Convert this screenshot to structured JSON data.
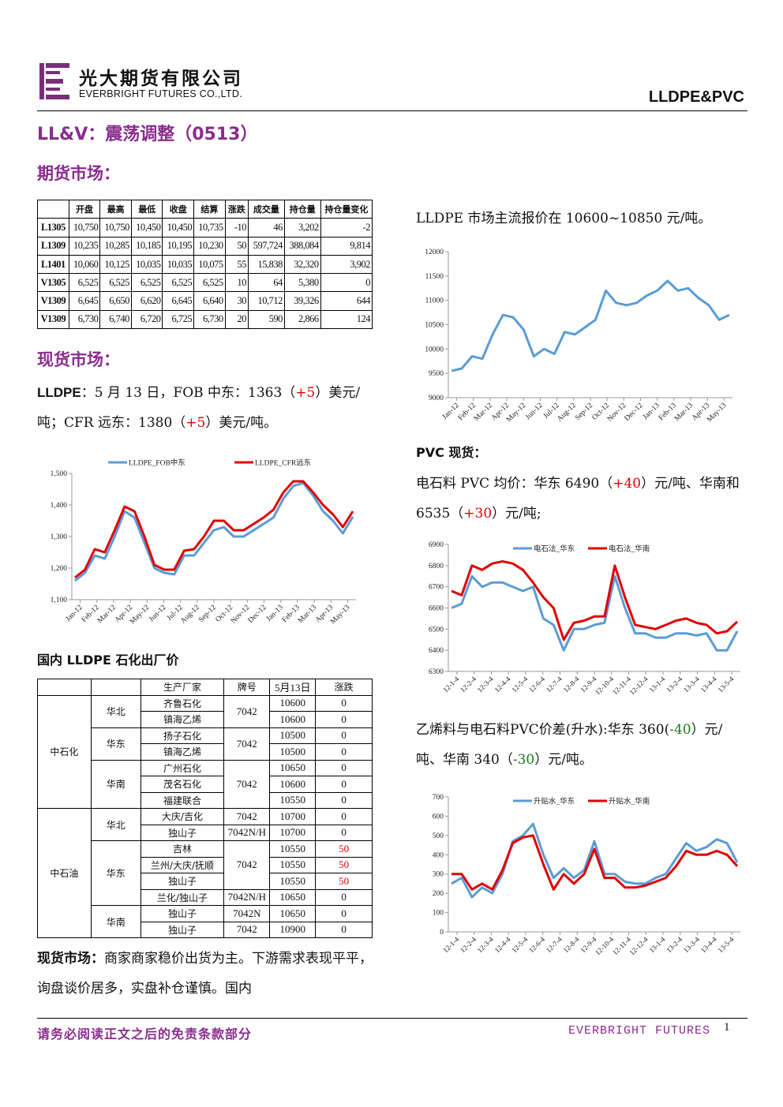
{
  "header": {
    "company_cn": "光大期货有限公司",
    "company_en": "EVERBRIGHT FUTURES CO.,LTD.",
    "report_type": "LLDPE&PVC",
    "logo_color": "#7a2e78"
  },
  "title": "LL&V：震荡调整（0513）",
  "futures": {
    "heading": "期货市场：",
    "columns": [
      "",
      "开盘",
      "最高",
      "最低",
      "收盘",
      "结算",
      "涨跌",
      "成交量",
      "持仓量",
      "持仓量变化"
    ],
    "rows": [
      [
        "L1305",
        "10,750",
        "10,750",
        "10,450",
        "10,450",
        "10,735",
        "-10",
        "46",
        "3,202",
        "-2"
      ],
      [
        "L1309",
        "10,235",
        "10,285",
        "10,185",
        "10,195",
        "10,230",
        "50",
        "597,724",
        "388,084",
        "9,814"
      ],
      [
        "L1401",
        "10,060",
        "10,125",
        "10,035",
        "10,035",
        "10,075",
        "55",
        "15,838",
        "32,320",
        "3,902"
      ],
      [
        "V1305",
        "6,525",
        "6,525",
        "6,525",
        "6,525",
        "6,525",
        "10",
        "64",
        "5,380",
        "0"
      ],
      [
        "V1309",
        "6,645",
        "6,650",
        "6,620",
        "6,645",
        "6,640",
        "30",
        "10,712",
        "39,326",
        "644"
      ],
      [
        "V1309",
        "6,730",
        "6,740",
        "6,720",
        "6,725",
        "6,730",
        "20",
        "590",
        "2,866",
        "124"
      ]
    ]
  },
  "spot": {
    "heading": "现货市场：",
    "lldpe_label": "LLDPE",
    "lldpe_text_1": "：5 月 13 日，FOB 中东：1363（",
    "lldpe_fob_change": "+5",
    "lldpe_text_2": "）美元/吨；CFR 远东：1380（",
    "lldpe_cfr_change": "+5",
    "lldpe_text_3": "）美元/吨。",
    "lldpe_quote": "LLDPE 市场主流报价在 10600~10850 元/吨。",
    "pvc_heading": "PVC 现货：",
    "pvc_text_1": "电石料 PVC 均价：华东 6490（",
    "pvc_east_change": "+40",
    "pvc_text_2": "）元/吨、华南和 6535（",
    "pvc_south_change": "+30",
    "pvc_text_3": "）元/吨;",
    "spread_text_1": "乙烯料与电石料PVC价差(升水):华东 360(",
    "spread_east_change": "-40",
    "spread_text_2": "）元/吨、华南 340（",
    "spread_south_change": "-30",
    "spread_text_3": "）元/吨。",
    "ex_factory_heading": "国内 LLDPE 石化出厂价",
    "market_label": "现货市场：",
    "market_text": "商家商家稳价出货为主。下游需求表现平平，询盘谈价居多，实盘补仓谨慎。国内"
  },
  "ex_factory": {
    "headers": [
      "生产厂家",
      "牌号",
      "5月13日",
      "涨跌"
    ],
    "groups": [
      {
        "company": "中石化",
        "regions": [
          {
            "region": "华北",
            "grade": "7042",
            "rows": [
              [
                "齐鲁石化",
                "10600",
                "0"
              ],
              [
                "镇海乙烯",
                "10600",
                "0"
              ]
            ]
          },
          {
            "region": "华东",
            "grade": "7042",
            "rows": [
              [
                "扬子石化",
                "10500",
                "0"
              ],
              [
                "镇海乙烯",
                "10500",
                "0"
              ]
            ]
          },
          {
            "region": "华南",
            "grade": "7042",
            "rows": [
              [
                "广州石化",
                "10650",
                "0"
              ],
              [
                "茂名石化",
                "10600",
                "0"
              ],
              [
                "福建联合",
                "10550",
                "0"
              ]
            ]
          }
        ]
      },
      {
        "company": "中石油",
        "regions": [
          {
            "region": "华北",
            "rows": [
              [
                "大庆/吉化",
                "7042",
                "10700",
                "0"
              ],
              [
                "独山子",
                "7042N/H",
                "10700",
                "0"
              ]
            ]
          },
          {
            "region": "华东",
            "grade": "7042",
            "rows": [
              [
                "吉林",
                "10550",
                "50"
              ],
              [
                "兰州/大庆/抚顺",
                "10550",
                "50"
              ],
              [
                "独山子",
                "10550",
                "50"
              ]
            ],
            "extra": [
              "兰化/独山子",
              "7042N/H",
              "10650",
              "0"
            ]
          },
          {
            "region": "华南",
            "rows": [
              [
                "独山子",
                "7042N",
                "10650",
                "0"
              ],
              [
                "独山子",
                "7042",
                "10900",
                "0"
              ]
            ]
          }
        ]
      }
    ]
  },
  "footer": {
    "disclaimer": "请务必阅读正文之后的免责条款部分",
    "brand": "EVERBRIGHT FUTURES",
    "page": "1"
  },
  "chart_data": [
    {
      "type": "line",
      "legend_placement": "top",
      "x_ticks": [
        "Jan-12",
        "Feb-12",
        "Mar-12",
        "Apr-12",
        "May-12",
        "Jun-12",
        "Jul-12",
        "Aug-12",
        "Sep-12",
        "Oct-12",
        "Nov-12",
        "Dec-12",
        "Jan-13",
        "Feb-13",
        "Mar-13",
        "Apr-13",
        "May-13"
      ],
      "ylim": [
        1100,
        1500
      ],
      "y_ticks": [
        "1,100",
        "1,200",
        "1,300",
        "1,400",
        "1,500"
      ],
      "series": [
        {
          "name": "LLDPE_FOB中东",
          "color": "#5b9bd5",
          "values": [
            1160,
            1185,
            1240,
            1230,
            1300,
            1380,
            1360,
            1280,
            1200,
            1185,
            1180,
            1240,
            1240,
            1280,
            1320,
            1330,
            1300,
            1300,
            1320,
            1340,
            1360,
            1420,
            1460,
            1470,
            1430,
            1380,
            1350,
            1310,
            1363
          ]
        },
        {
          "name": "LLDPE_CFR远东",
          "color": "#e00000",
          "values": [
            1170,
            1195,
            1260,
            1250,
            1320,
            1395,
            1380,
            1300,
            1210,
            1195,
            1195,
            1255,
            1260,
            1300,
            1350,
            1350,
            1320,
            1320,
            1340,
            1360,
            1385,
            1440,
            1475,
            1475,
            1440,
            1400,
            1370,
            1330,
            1380
          ]
        }
      ]
    },
    {
      "type": "line",
      "x_ticks": [
        "Jan-12",
        "Feb-12",
        "Mar-12",
        "Apr-12",
        "May-12",
        "Jun-12",
        "Jul-12",
        "Aug-12",
        "Sep-12",
        "Oct-12",
        "Nov-12",
        "Dec-12",
        "Jan-13",
        "Feb-13",
        "Mar-13",
        "Apr-13",
        "May-13"
      ],
      "ylim": [
        9000,
        12000
      ],
      "y_ticks": [
        "9000",
        "9500",
        "10000",
        "10500",
        "11000",
        "11500",
        "12000"
      ],
      "series": [
        {
          "name": "LLDPE",
          "color": "#5b9bd5",
          "values": [
            9550,
            9600,
            9850,
            9800,
            10300,
            10700,
            10650,
            10400,
            9850,
            10000,
            9900,
            10350,
            10300,
            10450,
            10600,
            11200,
            10950,
            10900,
            10950,
            11100,
            11200,
            11400,
            11200,
            11250,
            11050,
            10900,
            10600,
            10700
          ]
        }
      ]
    },
    {
      "type": "line",
      "legend_placement": "top",
      "x_ticks": [
        "12-1-4",
        "12-2-4",
        "12-3-4",
        "12-4-4",
        "12-5-4",
        "12-6-4",
        "12-7-4",
        "12-8-4",
        "12-9-4",
        "12-10-4",
        "12-11-4",
        "12-12-4",
        "13-1-4",
        "13-2-4",
        "13-3-4",
        "13-4-4",
        "13-5-4"
      ],
      "ylim": [
        6300,
        6900
      ],
      "y_ticks": [
        "6300",
        "6400",
        "6500",
        "6600",
        "6700",
        "6800",
        "6900"
      ],
      "series": [
        {
          "name": "电石法_华东",
          "color": "#5b9bd5",
          "values": [
            6600,
            6620,
            6750,
            6700,
            6720,
            6720,
            6700,
            6680,
            6700,
            6550,
            6520,
            6400,
            6500,
            6500,
            6520,
            6530,
            6750,
            6600,
            6480,
            6480,
            6460,
            6460,
            6480,
            6480,
            6470,
            6480,
            6400,
            6400,
            6490
          ]
        },
        {
          "name": "电石法_华南",
          "color": "#e00000",
          "values": [
            6680,
            6660,
            6800,
            6780,
            6810,
            6820,
            6810,
            6780,
            6720,
            6650,
            6600,
            6450,
            6530,
            6540,
            6560,
            6560,
            6800,
            6650,
            6520,
            6510,
            6500,
            6520,
            6540,
            6550,
            6530,
            6520,
            6480,
            6490,
            6535
          ]
        }
      ]
    },
    {
      "type": "line",
      "legend_placement": "top",
      "x_ticks": [
        "12-1-4",
        "12-2-4",
        "12-3-4",
        "12-4-4",
        "12-5-4",
        "12-6-4",
        "12-7-4",
        "12-8-4",
        "12-9-4",
        "12-10-4",
        "12-11-4",
        "12-12-4",
        "13-1-4",
        "13-2-4",
        "13-3-4",
        "13-4-4",
        "13-5-4"
      ],
      "ylim": [
        0,
        700
      ],
      "y_ticks": [
        "0",
        "100",
        "200",
        "300",
        "400",
        "500",
        "600",
        "700"
      ],
      "series": [
        {
          "name": "升贴水_华东",
          "color": "#5b9bd5",
          "values": [
            250,
            280,
            180,
            230,
            200,
            300,
            470,
            500,
            560,
            400,
            280,
            330,
            280,
            320,
            470,
            300,
            300,
            260,
            250,
            250,
            280,
            300,
            380,
            460,
            420,
            440,
            480,
            460,
            360
          ]
        },
        {
          "name": "升贴水_华南",
          "color": "#e00000",
          "values": [
            300,
            300,
            220,
            250,
            220,
            320,
            460,
            490,
            500,
            350,
            220,
            300,
            250,
            300,
            430,
            280,
            280,
            230,
            230,
            240,
            260,
            280,
            340,
            420,
            400,
            400,
            420,
            400,
            340
          ]
        }
      ]
    }
  ]
}
